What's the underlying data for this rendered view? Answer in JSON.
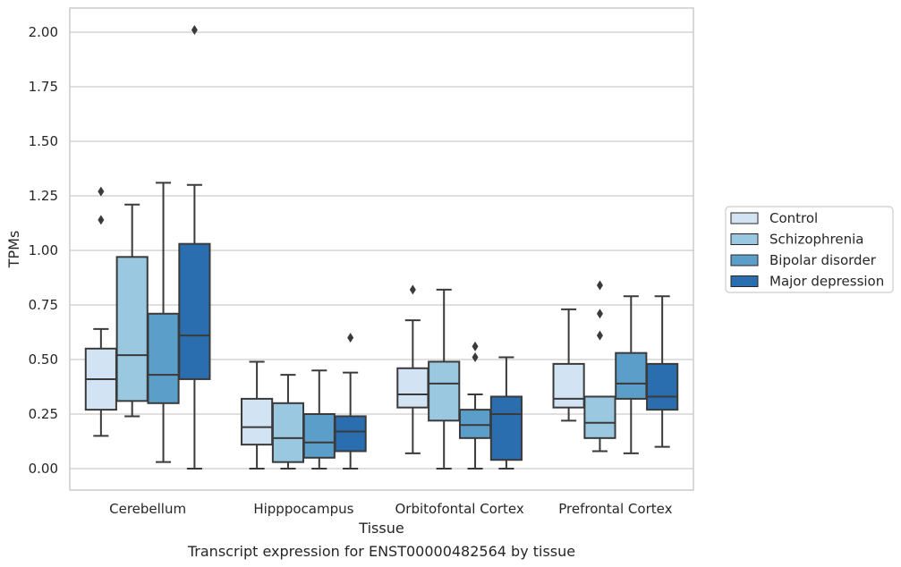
{
  "chart_data": {
    "type": "boxplot",
    "title": "",
    "caption": "Transcript expression for ENST00000482564 by tissue",
    "xlabel": "Tissue",
    "ylabel": "TPMs",
    "ylim": [
      -0.1,
      2.1
    ],
    "yticks": [
      "0.00",
      "0.25",
      "0.50",
      "0.75",
      "1.00",
      "1.25",
      "1.50",
      "1.75",
      "2.00"
    ],
    "grid": "horizontal",
    "legend_position": "right",
    "categories": [
      "Cerebellum",
      "Hipppocampus",
      "Orbitofontal Cortex",
      "Prefrontal Cortex"
    ],
    "series": [
      {
        "name": "Control",
        "color": "#d2e3f3",
        "boxes": [
          {
            "q1": 0.27,
            "median": 0.41,
            "q3": 0.55,
            "whisker_low": 0.15,
            "whisker_high": 0.64,
            "outliers": [
              1.14,
              1.27
            ]
          },
          {
            "q1": 0.11,
            "median": 0.19,
            "q3": 0.32,
            "whisker_low": 0.0,
            "whisker_high": 0.49,
            "outliers": []
          },
          {
            "q1": 0.28,
            "median": 0.34,
            "q3": 0.46,
            "whisker_low": 0.07,
            "whisker_high": 0.68,
            "outliers": [
              0.82
            ]
          },
          {
            "q1": 0.28,
            "median": 0.32,
            "q3": 0.48,
            "whisker_low": 0.22,
            "whisker_high": 0.73,
            "outliers": []
          }
        ]
      },
      {
        "name": "Schizophrenia",
        "color": "#9ac8e0",
        "boxes": [
          {
            "q1": 0.31,
            "median": 0.52,
            "q3": 0.97,
            "whisker_low": 0.24,
            "whisker_high": 1.21,
            "outliers": []
          },
          {
            "q1": 0.03,
            "median": 0.14,
            "q3": 0.3,
            "whisker_low": 0.0,
            "whisker_high": 0.43,
            "outliers": []
          },
          {
            "q1": 0.22,
            "median": 0.39,
            "q3": 0.49,
            "whisker_low": 0.0,
            "whisker_high": 0.82,
            "outliers": []
          },
          {
            "q1": 0.14,
            "median": 0.21,
            "q3": 0.33,
            "whisker_low": 0.08,
            "whisker_high": 0.33,
            "outliers": [
              0.61,
              0.71,
              0.84
            ]
          }
        ]
      },
      {
        "name": "Bipolar disorder",
        "color": "#5a9ec9",
        "boxes": [
          {
            "q1": 0.3,
            "median": 0.43,
            "q3": 0.71,
            "whisker_low": 0.03,
            "whisker_high": 1.31,
            "outliers": []
          },
          {
            "q1": 0.05,
            "median": 0.12,
            "q3": 0.25,
            "whisker_low": 0.0,
            "whisker_high": 0.45,
            "outliers": []
          },
          {
            "q1": 0.14,
            "median": 0.2,
            "q3": 0.27,
            "whisker_low": 0.0,
            "whisker_high": 0.34,
            "outliers": [
              0.51,
              0.56
            ]
          },
          {
            "q1": 0.32,
            "median": 0.39,
            "q3": 0.53,
            "whisker_low": 0.07,
            "whisker_high": 0.79,
            "outliers": []
          }
        ]
      },
      {
        "name": "Major depression",
        "color": "#2a6eb0",
        "boxes": [
          {
            "q1": 0.41,
            "median": 0.61,
            "q3": 1.03,
            "whisker_low": 0.0,
            "whisker_high": 1.3,
            "outliers": [
              2.01
            ]
          },
          {
            "q1": 0.08,
            "median": 0.17,
            "q3": 0.24,
            "whisker_low": 0.0,
            "whisker_high": 0.44,
            "outliers": [
              0.6
            ]
          },
          {
            "q1": 0.04,
            "median": 0.25,
            "q3": 0.33,
            "whisker_low": 0.0,
            "whisker_high": 0.51,
            "outliers": []
          },
          {
            "q1": 0.27,
            "median": 0.33,
            "q3": 0.48,
            "whisker_low": 0.1,
            "whisker_high": 0.79,
            "outliers": []
          }
        ]
      }
    ]
  }
}
